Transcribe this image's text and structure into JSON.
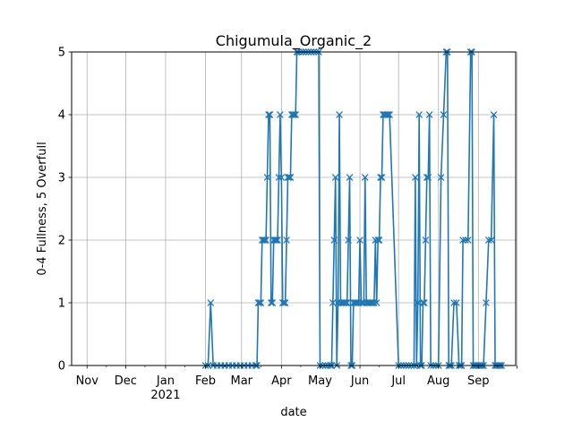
{
  "chart_data": {
    "type": "line",
    "title": "Chigumula_Organic_2",
    "xlabel": "date",
    "ylabel": "0-4 Fullness, 5 Overfull",
    "ylim": [
      0,
      5
    ],
    "yticks": [
      0,
      1,
      2,
      3,
      4,
      5
    ],
    "xlim": [
      "2020-10-20",
      "2021-09-30"
    ],
    "grid": true,
    "marker": "x",
    "line_color": "#1f77b4",
    "xticks": [
      {
        "date": "2020-11-01",
        "label": "Nov"
      },
      {
        "date": "2020-12-01",
        "label": "Dec"
      },
      {
        "date": "2021-01-01",
        "label": "Jan",
        "label2": "2021"
      },
      {
        "date": "2021-02-01",
        "label": "Feb"
      },
      {
        "date": "2021-03-01",
        "label": "Mar"
      },
      {
        "date": "2021-04-01",
        "label": "Apr"
      },
      {
        "date": "2021-05-01",
        "label": "May"
      },
      {
        "date": "2021-06-01",
        "label": "Jun"
      },
      {
        "date": "2021-07-01",
        "label": "Jul"
      },
      {
        "date": "2021-08-01",
        "label": "Aug"
      },
      {
        "date": "2021-09-01",
        "label": "Sep"
      },
      {
        "date": "2021-10-01",
        "label": ""
      }
    ],
    "series": [
      {
        "x": [
          "2021-02-01",
          "2021-02-03",
          "2021-02-05",
          "2021-02-07",
          "2021-02-10",
          "2021-02-13",
          "2021-02-16",
          "2021-02-19",
          "2021-02-22",
          "2021-02-25",
          "2021-02-28",
          "2021-03-03",
          "2021-03-06",
          "2021-03-09",
          "2021-03-12",
          "2021-03-13",
          "2021-03-14",
          "2021-03-15",
          "2021-03-16",
          "2021-03-17",
          "2021-03-18",
          "2021-03-19",
          "2021-03-20",
          "2021-03-21",
          "2021-03-22",
          "2021-03-23",
          "2021-03-24",
          "2021-03-25",
          "2021-03-26",
          "2021-03-27",
          "2021-03-28",
          "2021-03-29",
          "2021-03-30",
          "2021-03-31",
          "2021-04-01",
          "2021-04-02",
          "2021-04-03",
          "2021-04-04",
          "2021-04-05",
          "2021-04-06",
          "2021-04-07",
          "2021-04-08",
          "2021-04-09",
          "2021-04-10",
          "2021-04-11",
          "2021-04-12",
          "2021-04-13",
          "2021-04-14",
          "2021-04-16",
          "2021-04-18",
          "2021-04-20",
          "2021-04-22",
          "2021-04-24",
          "2021-04-26",
          "2021-04-28",
          "2021-04-30",
          "2021-05-01",
          "2021-05-03",
          "2021-05-05",
          "2021-05-07",
          "2021-05-09",
          "2021-05-10",
          "2021-05-11",
          "2021-05-12",
          "2021-05-13",
          "2021-05-14",
          "2021-05-15",
          "2021-05-16",
          "2021-05-17",
          "2021-05-18",
          "2021-05-19",
          "2021-05-20",
          "2021-05-21",
          "2021-05-22",
          "2021-05-23",
          "2021-05-24",
          "2021-05-25",
          "2021-05-26",
          "2021-05-27",
          "2021-05-28",
          "2021-05-29",
          "2021-05-30",
          "2021-05-31",
          "2021-06-01",
          "2021-06-02",
          "2021-06-03",
          "2021-06-04",
          "2021-06-05",
          "2021-06-06",
          "2021-06-07",
          "2021-06-08",
          "2021-06-09",
          "2021-06-10",
          "2021-06-11",
          "2021-06-12",
          "2021-06-13",
          "2021-06-14",
          "2021-06-15",
          "2021-06-16",
          "2021-06-17",
          "2021-06-18",
          "2021-06-19",
          "2021-06-20",
          "2021-06-21",
          "2021-06-22",
          "2021-06-23",
          "2021-06-24",
          "2021-07-01",
          "2021-07-03",
          "2021-07-05",
          "2021-07-07",
          "2021-07-09",
          "2021-07-11",
          "2021-07-13",
          "2021-07-14",
          "2021-07-15",
          "2021-07-16",
          "2021-07-17",
          "2021-07-18",
          "2021-07-19",
          "2021-07-20",
          "2021-07-21",
          "2021-07-22",
          "2021-07-23",
          "2021-07-24",
          "2021-07-25",
          "2021-07-26",
          "2021-07-28",
          "2021-07-30",
          "2021-08-01",
          "2021-08-03",
          "2021-08-05",
          "2021-08-07",
          "2021-08-08",
          "2021-08-09",
          "2021-08-10",
          "2021-08-11",
          "2021-08-13",
          "2021-08-15",
          "2021-08-17",
          "2021-08-18",
          "2021-08-19",
          "2021-08-20",
          "2021-08-22",
          "2021-08-24",
          "2021-08-26",
          "2021-08-27",
          "2021-08-28",
          "2021-08-29",
          "2021-08-30",
          "2021-08-31",
          "2021-09-01",
          "2021-09-02",
          "2021-09-03",
          "2021-09-04",
          "2021-09-05",
          "2021-09-07",
          "2021-09-09",
          "2021-09-11",
          "2021-09-13",
          "2021-09-14",
          "2021-09-15",
          "2021-09-16",
          "2021-09-17",
          "2021-09-18",
          "2021-09-19"
        ],
        "y": [
          0,
          0,
          1,
          0,
          0,
          0,
          0,
          0,
          0,
          0,
          0,
          0,
          0,
          0,
          0,
          0,
          1,
          1,
          1,
          2,
          2,
          2,
          2,
          3,
          4,
          4,
          1,
          1,
          2,
          2,
          2,
          2,
          3,
          4,
          3,
          1,
          1,
          1,
          2,
          3,
          3,
          3,
          4,
          4,
          4,
          4,
          5,
          5,
          5,
          5,
          5,
          5,
          5,
          5,
          5,
          5,
          0,
          0,
          0,
          0,
          0,
          0,
          1,
          2,
          3,
          0,
          1,
          4,
          1,
          1,
          1,
          1,
          1,
          1,
          2,
          3,
          0,
          0,
          1,
          1,
          1,
          1,
          1,
          2,
          1,
          1,
          1,
          3,
          1,
          1,
          1,
          1,
          1,
          1,
          1,
          2,
          1,
          2,
          2,
          3,
          3,
          4,
          4,
          4,
          4,
          4,
          4,
          0,
          0,
          0,
          0,
          0,
          0,
          0,
          3,
          0,
          1,
          4,
          0,
          0,
          1,
          1,
          2,
          3,
          3,
          4,
          0,
          0,
          0,
          0,
          3,
          4,
          5,
          5,
          0,
          0,
          0,
          1,
          1,
          0,
          0,
          0,
          2,
          2,
          2,
          5,
          5,
          0,
          0,
          0,
          0,
          0,
          0,
          0,
          0,
          0,
          1,
          2,
          2,
          4,
          0,
          0,
          0,
          0,
          0,
          0
        ]
      }
    ]
  }
}
